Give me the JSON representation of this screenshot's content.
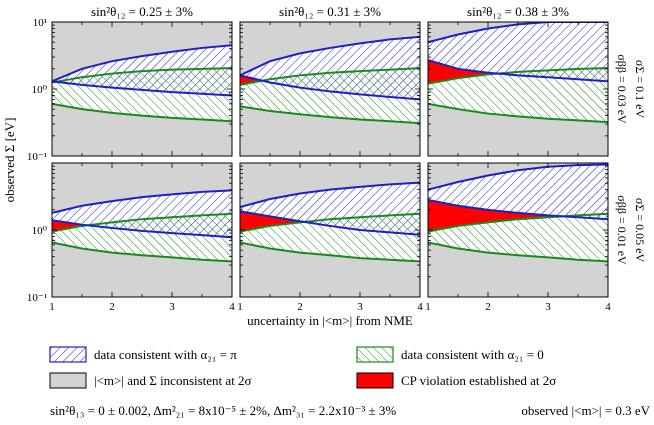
{
  "chart_data": {
    "type": "area",
    "yscale": "log",
    "ylim": [
      0.1,
      10
    ],
    "xlim": [
      1,
      4
    ],
    "x_ticks": [
      1,
      2,
      3,
      4
    ],
    "y_tick_labels": [
      "10⁻¹",
      "10⁰",
      "10¹"
    ],
    "xlabel": "uncertainty in |<m>| from NME",
    "ylabel": "observed Σ [eV]",
    "column_titles": [
      "sin²θ₁₂ = 0.25 ± 3%",
      "sin²θ₁₂ = 0.31 ± 3%",
      "sin²θ₁₂ = 0.38 ± 3%"
    ],
    "row_labels": [
      {
        "sigma_sum": "σΣ = 0.1 eV",
        "sigma_bb": "σββ = 0.03 eV"
      },
      {
        "sigma_sum": "σΣ = 0.05 eV",
        "sigma_bb": "σββ = 0.01 eV"
      }
    ],
    "x": [
      1,
      1.5,
      2,
      2.5,
      3,
      3.5,
      4
    ],
    "panels": [
      {
        "row": 0,
        "col": 0,
        "blue_upper": [
          1.3,
          2.0,
          2.6,
          3.1,
          3.6,
          4.1,
          4.5
        ],
        "blue_lower": [
          1.3,
          1.15,
          1.05,
          0.97,
          0.9,
          0.85,
          0.8
        ],
        "green_upper": [
          1.25,
          1.5,
          1.7,
          1.85,
          1.95,
          2.0,
          2.05
        ],
        "green_lower": [
          0.6,
          0.5,
          0.44,
          0.4,
          0.37,
          0.35,
          0.33
        ]
      },
      {
        "row": 0,
        "col": 1,
        "blue_upper": [
          1.6,
          2.6,
          3.4,
          4.1,
          4.8,
          5.5,
          6.0
        ],
        "blue_lower": [
          1.6,
          1.25,
          1.05,
          0.92,
          0.83,
          0.76,
          0.7
        ],
        "green_upper": [
          1.15,
          1.4,
          1.6,
          1.75,
          1.85,
          1.95,
          2.05
        ],
        "green_lower": [
          0.55,
          0.47,
          0.42,
          0.38,
          0.35,
          0.33,
          0.31
        ]
      },
      {
        "row": 0,
        "col": 2,
        "blue_upper": [
          5.0,
          6.5,
          8.0,
          9.2,
          10.0,
          10.0,
          10.0
        ],
        "blue_lower": [
          2.7,
          2.0,
          1.75,
          1.6,
          1.5,
          1.4,
          1.3
        ],
        "green_upper": [
          1.2,
          1.45,
          1.65,
          1.8,
          1.9,
          2.0,
          2.05
        ],
        "green_lower": [
          0.6,
          0.5,
          0.43,
          0.39,
          0.36,
          0.34,
          0.32
        ]
      },
      {
        "row": 1,
        "col": 0,
        "blue_upper": [
          1.8,
          2.3,
          2.7,
          3.1,
          3.4,
          3.7,
          3.9
        ],
        "blue_lower": [
          1.4,
          1.2,
          1.07,
          0.97,
          0.9,
          0.84,
          0.78
        ],
        "green_upper": [
          0.95,
          1.15,
          1.3,
          1.45,
          1.55,
          1.65,
          1.75
        ],
        "green_lower": [
          0.65,
          0.53,
          0.46,
          0.42,
          0.39,
          0.36,
          0.34
        ]
      },
      {
        "row": 1,
        "col": 1,
        "blue_upper": [
          2.2,
          2.9,
          3.5,
          4.0,
          4.4,
          4.8,
          5.1
        ],
        "blue_lower": [
          1.9,
          1.6,
          1.35,
          1.15,
          1.0,
          0.92,
          0.85
        ],
        "green_upper": [
          0.95,
          1.15,
          1.3,
          1.45,
          1.55,
          1.65,
          1.75
        ],
        "green_lower": [
          0.65,
          0.53,
          0.46,
          0.42,
          0.38,
          0.36,
          0.34
        ]
      },
      {
        "row": 1,
        "col": 2,
        "blue_upper": [
          4.0,
          5.2,
          6.5,
          7.8,
          8.8,
          9.3,
          9.5
        ],
        "blue_lower": [
          2.8,
          2.3,
          2.0,
          1.8,
          1.65,
          1.55,
          1.45
        ],
        "green_upper": [
          0.95,
          1.15,
          1.3,
          1.45,
          1.55,
          1.65,
          1.75
        ],
        "green_lower": [
          0.65,
          0.53,
          0.46,
          0.42,
          0.39,
          0.36,
          0.34
        ]
      }
    ],
    "colors": {
      "blue": "#1f1fc8",
      "green": "#1a8a1a",
      "red": "#ff0000",
      "grey": "#d3d3d3"
    }
  },
  "legend": {
    "blue": "data consistent with α₂₁ = π",
    "green": "data consistent with α₂₁ = 0",
    "grey": "|<m>| and Σ inconsistent at 2σ",
    "red": "CP violation established at 2σ"
  },
  "footer": {
    "params": "sin²θ₁₃ = 0 ± 0.002,  Δm²₂₁ = 8x10⁻⁵ ± 2%,  Δm²₃₁ = 2.2x10⁻³ ± 3%",
    "observed": "observed  |<m>| = 0.3 eV"
  }
}
